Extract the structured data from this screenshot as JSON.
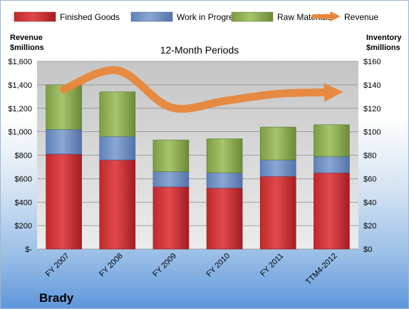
{
  "chart_data": {
    "type": "bar",
    "stacked": true,
    "title": "12-Month Periods",
    "company": "Brady",
    "categories": [
      "FY 2007",
      "FY 2008",
      "FY 2009",
      "FY 2010",
      "FY 2011",
      "TTM4-2012"
    ],
    "series": [
      {
        "name": "Finished Goods",
        "axis": "right",
        "color": "#c0282d",
        "values": [
          81,
          76,
          53,
          52,
          62,
          65
        ]
      },
      {
        "name": "Work in Progress",
        "axis": "right",
        "color": "#6f8fc3",
        "values": [
          21,
          20,
          13,
          13,
          14,
          14
        ]
      },
      {
        "name": "Raw Materials",
        "axis": "right",
        "color": "#8dae53",
        "values": [
          38,
          38,
          27,
          29,
          28,
          27
        ]
      },
      {
        "name": "Revenue",
        "axis": "left",
        "type": "line",
        "color": "#e8873b",
        "values": [
          1362,
          1523,
          1208,
          1263,
          1324,
          1337
        ]
      }
    ],
    "y_left": {
      "label_line1": "Revenue",
      "label_line2": "$millions",
      "ylim": [
        0,
        1600
      ],
      "ticks": [
        "$-",
        "$200",
        "$400",
        "$600",
        "$800",
        "$1,000",
        "$1,200",
        "$1,400",
        "$1,600"
      ]
    },
    "y_right": {
      "label_line1": "Inventory",
      "label_line2": "$millions",
      "ylim": [
        0,
        160
      ],
      "ticks": [
        "$0",
        "$20",
        "$40",
        "$60",
        "$80",
        "$100",
        "$120",
        "$140",
        "$160"
      ]
    },
    "grid": true,
    "legend_position": "top"
  }
}
